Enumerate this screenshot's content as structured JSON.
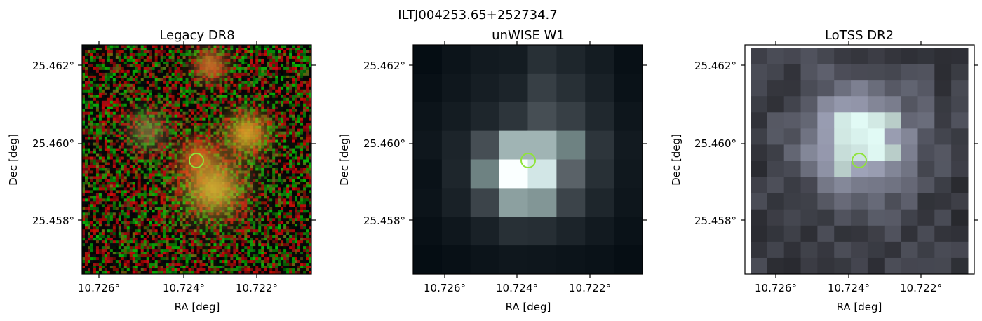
{
  "figure": {
    "title": "ILTJ004253.65+252734.7"
  },
  "panels": [
    {
      "title": "Legacy DR8",
      "xlabel": "RA [deg]",
      "ylabel": "Dec [deg]",
      "xticks": [
        "10.726°",
        "10.724°",
        "10.722°"
      ],
      "yticks": [
        "25.462°",
        "25.460°",
        "25.458°"
      ],
      "style": "rgb-noise"
    },
    {
      "title": "unWISE W1",
      "xlabel": "RA [deg]",
      "ylabel": "Dec [deg]",
      "xticks": [
        "10.726°",
        "10.724°",
        "10.722°"
      ],
      "yticks": [
        "25.462°",
        "25.460°",
        "25.458°"
      ],
      "style": "gray-pixels"
    },
    {
      "title": "LoTSS DR2",
      "xlabel": "RA [deg]",
      "ylabel": "Dec [deg]",
      "xticks": [
        "10.726°",
        "10.724°",
        "10.722°"
      ],
      "yticks": [
        "25.462°",
        "25.460°",
        "25.458°"
      ],
      "style": "purple-pixels"
    }
  ],
  "colors": {
    "marker_circle": "#8fe33a",
    "axis": "#000000"
  }
}
